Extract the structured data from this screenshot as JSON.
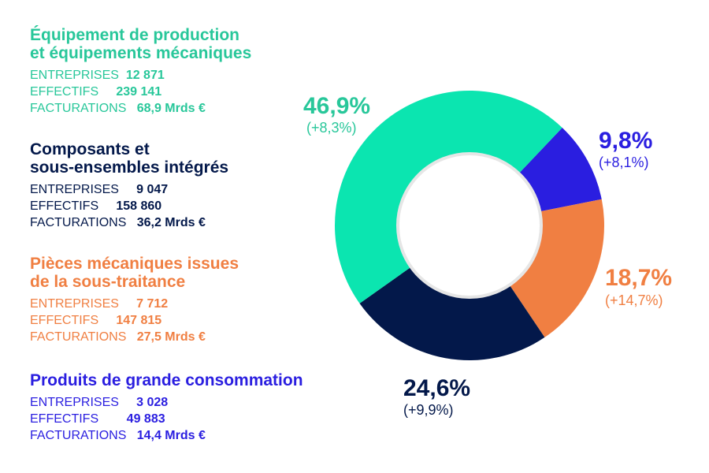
{
  "chart_data": {
    "type": "pie",
    "variant": "donut",
    "title": "",
    "series": [
      {
        "name": "Équipement de production et équipements mécaniques",
        "title_lines": [
          "Équipement de production",
          "et équipements mécaniques"
        ],
        "value": 46.9,
        "pct_label": "46,9%",
        "change_label": "(+8,3%)",
        "color": "#0BE5B0",
        "stats": {
          "entreprises": "12 871",
          "effectifs": "239 141",
          "facturations": "68,9 Mrds €"
        }
      },
      {
        "name": "Composants et sous-ensembles intégrés",
        "title_lines": [
          "Composants et",
          "sous-ensembles intégrés"
        ],
        "value": 24.6,
        "pct_label": "24,6%",
        "change_label": "(+9,9%)",
        "color": "#03184A",
        "stats": {
          "entreprises": "9 047",
          "effectifs": "158 860",
          "facturations": "36,2 Mrds €"
        }
      },
      {
        "name": "Pièces mécaniques issues de la sous-traitance",
        "title_lines": [
          "Pièces mécaniques issues",
          "de la sous-traitance"
        ],
        "value": 18.7,
        "pct_label": "18,7%",
        "change_label": "(+14,7%)",
        "color": "#F07F42",
        "stats": {
          "entreprises": "7 712",
          "effectifs": "147 815",
          "facturations": "27,5 Mrds €"
        }
      },
      {
        "name": "Produits de grande consommation",
        "title_lines": [
          "Produits de grande consommation"
        ],
        "value": 9.8,
        "pct_label": "9,8%",
        "change_label": "(+8,1%)",
        "color": "#2A1EE0",
        "stats": {
          "entreprises": "3 028",
          "effectifs": "49 883",
          "facturations": "14,4 Mrds €"
        }
      }
    ]
  },
  "labels": {
    "entreprises": "ENTREPRISES",
    "effectifs": "EFFECTIFS",
    "facturations": "FACTURATIONS"
  },
  "colors": {
    "legend_text_1": "#28C79A",
    "legend_text_2": "#03184A",
    "legend_text_3": "#F07F42",
    "legend_text_4": "#2A1EE0",
    "pct_text_1": "#28C79A",
    "pct_text_2": "#03184A",
    "pct_text_3": "#F07F42",
    "pct_text_4": "#2A1EE0",
    "inner_ring": "#E6E6E6"
  }
}
